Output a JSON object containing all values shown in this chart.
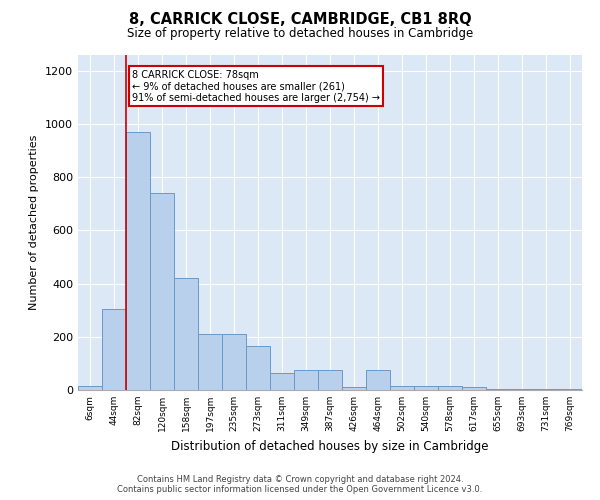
{
  "title": "8, CARRICK CLOSE, CAMBRIDGE, CB1 8RQ",
  "subtitle": "Size of property relative to detached houses in Cambridge",
  "xlabel": "Distribution of detached houses by size in Cambridge",
  "ylabel": "Number of detached properties",
  "bar_labels": [
    "6sqm",
    "44sqm",
    "82sqm",
    "120sqm",
    "158sqm",
    "197sqm",
    "235sqm",
    "273sqm",
    "311sqm",
    "349sqm",
    "387sqm",
    "426sqm",
    "464sqm",
    "502sqm",
    "540sqm",
    "578sqm",
    "617sqm",
    "655sqm",
    "693sqm",
    "731sqm",
    "769sqm"
  ],
  "bar_values": [
    15,
    305,
    970,
    740,
    420,
    210,
    210,
    165,
    65,
    75,
    75,
    10,
    75,
    15,
    15,
    15,
    10,
    5,
    3,
    3,
    3
  ],
  "bar_color": "#b8d0eb",
  "bar_edge_color": "#6699cc",
  "vline_color": "#cc0000",
  "vline_x": 2.0,
  "annotation_line1": "8 CARRICK CLOSE: 78sqm",
  "annotation_line2": "← 9% of detached houses are smaller (261)",
  "annotation_line3": "91% of semi-detached houses are larger (2,754) →",
  "annotation_box_facecolor": "#ffffff",
  "annotation_box_edgecolor": "#cc0000",
  "ylim": [
    0,
    1260
  ],
  "yticks": [
    0,
    200,
    400,
    600,
    800,
    1000,
    1200
  ],
  "axes_facecolor": "#dce8f5",
  "fig_facecolor": "#ffffff",
  "footer_line1": "Contains HM Land Registry data © Crown copyright and database right 2024.",
  "footer_line2": "Contains public sector information licensed under the Open Government Licence v3.0."
}
